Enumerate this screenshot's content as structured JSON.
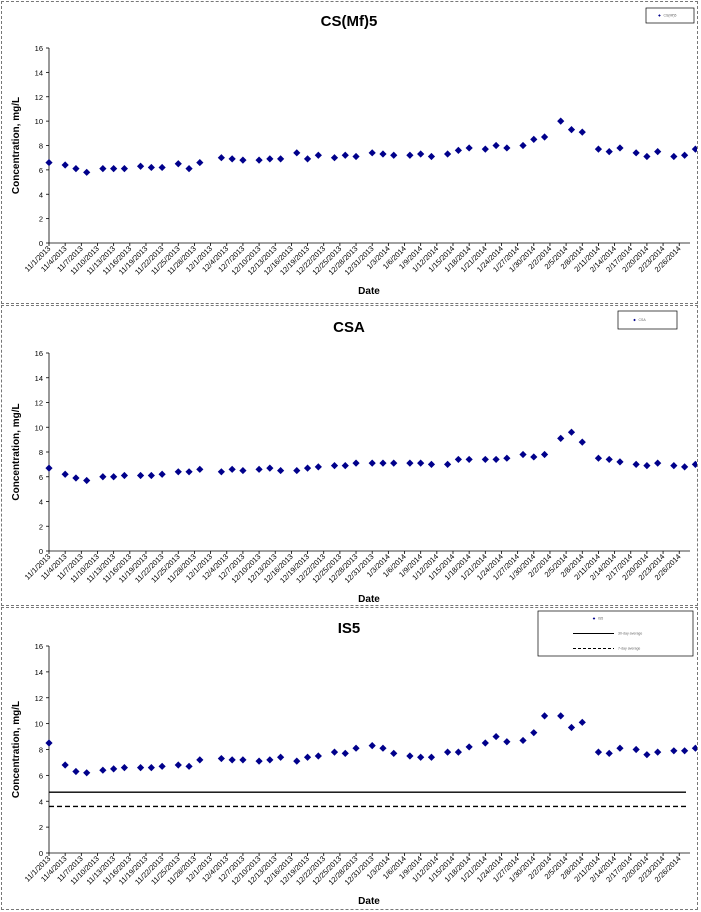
{
  "x_dates": [
    "11/1/2013",
    "11/4/2013",
    "11/7/2013",
    "11/10/2013",
    "11/13/2013",
    "11/16/2013",
    "11/19/2013",
    "11/22/2013",
    "11/25/2013",
    "11/28/2013",
    "12/1/2013",
    "12/4/2013",
    "12/7/2013",
    "12/10/2013",
    "12/13/2013",
    "12/16/2013",
    "12/19/2013",
    "12/22/2013",
    "12/25/2013",
    "12/28/2013",
    "12/31/2013",
    "1/3/2014",
    "1/6/2014",
    "1/9/2014",
    "1/12/2014",
    "1/15/2014",
    "1/18/2014",
    "1/21/2014",
    "1/24/2014",
    "1/27/2014",
    "1/30/2014",
    "2/2/2014",
    "2/5/2014",
    "2/8/2014",
    "2/11/2014",
    "2/14/2014",
    "2/17/2014",
    "2/20/2014",
    "2/23/2014",
    "2/26/2014"
  ],
  "chart_data": [
    {
      "type": "scatter",
      "title": "CS(Mf)5",
      "xlabel": "Date",
      "ylabel": "Concentration, mg/L",
      "ylim": [
        0,
        16
      ],
      "yticks": [
        0,
        2,
        4,
        6,
        8,
        10,
        12,
        14,
        16
      ],
      "x_start": "11/1/2013",
      "x_end": "2/28/2014",
      "tick_labels": [
        "11/1/2013",
        "11/4/2013",
        "11/7/2013",
        "11/10/2013",
        "11/13/2013",
        "11/16/2013",
        "11/19/2013",
        "11/22/2013",
        "11/25/2013",
        "11/28/2013",
        "12/1/2013",
        "12/4/2013",
        "12/7/2013",
        "12/10/2013",
        "12/13/2013",
        "12/16/2013",
        "12/19/2013",
        "12/22/2013",
        "12/25/2013",
        "12/28/2013",
        "12/31/2013",
        "1/3/2014",
        "1/6/2014",
        "1/9/2014",
        "1/12/2014",
        "1/15/2014",
        "1/18/2014",
        "1/21/2014",
        "1/24/2014",
        "1/27/2014",
        "1/30/2014",
        "2/2/2014",
        "2/5/2014",
        "2/8/2014",
        "2/11/2014",
        "2/14/2014",
        "2/17/2014",
        "2/20/2014",
        "2/23/2014",
        "2/26/2014"
      ],
      "legend_position": "top-right",
      "legend": [
        {
          "label": "CS(Mf)5",
          "marker": "diamond"
        }
      ],
      "series": [
        {
          "name": "CS(Mf)5",
          "color": "#00008b",
          "marker": "diamond",
          "x": [
            "11/1/2013",
            "11/4/2013",
            "11/6/2013",
            "11/8/2013",
            "11/11/2013",
            "11/13/2013",
            "11/15/2013",
            "11/18/2013",
            "11/20/2013",
            "11/22/2013",
            "11/25/2013",
            "11/27/2013",
            "11/29/2013",
            "12/3/2013",
            "12/5/2013",
            "12/7/2013",
            "12/10/2013",
            "12/12/2013",
            "12/14/2013",
            "12/17/2013",
            "12/19/2013",
            "12/21/2013",
            "12/24/2013",
            "12/26/2013",
            "12/28/2013",
            "12/31/2013",
            "1/2/2014",
            "1/4/2014",
            "1/7/2014",
            "1/9/2014",
            "1/11/2014",
            "1/14/2014",
            "1/16/2014",
            "1/18/2014",
            "1/21/2014",
            "1/23/2014",
            "1/25/2014",
            "1/28/2014",
            "1/30/2014",
            "2/1/2014",
            "2/4/2014",
            "2/6/2014",
            "2/8/2014",
            "2/11/2014",
            "2/13/2014",
            "2/15/2014",
            "2/18/2014",
            "2/20/2014",
            "2/22/2014",
            "2/25/2014",
            "2/27/2014",
            "3/1/2014"
          ],
          "y": [
            6.6,
            6.4,
            6.1,
            5.8,
            6.1,
            6.1,
            6.1,
            6.3,
            6.2,
            6.2,
            6.5,
            6.1,
            6.6,
            7.0,
            6.9,
            6.8,
            6.8,
            6.9,
            6.9,
            7.4,
            6.9,
            7.2,
            7.0,
            7.2,
            7.1,
            7.4,
            7.3,
            7.2,
            7.2,
            7.3,
            7.1,
            7.3,
            7.6,
            7.8,
            7.7,
            8.0,
            7.8,
            8.0,
            8.5,
            8.7,
            10.0,
            9.3,
            9.1,
            7.7,
            7.5,
            7.8,
            7.4,
            7.1,
            7.5,
            7.1,
            7.2,
            7.7
          ]
        }
      ]
    },
    {
      "type": "scatter",
      "title": "CSA",
      "xlabel": "Date",
      "ylabel": "Concentration, mg/L",
      "ylim": [
        0,
        16
      ],
      "yticks": [
        0,
        2,
        4,
        6,
        8,
        10,
        12,
        14,
        16
      ],
      "x_start": "11/1/2013",
      "x_end": "2/28/2014",
      "tick_labels": [
        "11/1/2013",
        "11/4/2013",
        "11/7/2013",
        "11/10/2013",
        "11/13/2013",
        "11/16/2013",
        "11/19/2013",
        "11/22/2013",
        "11/25/2013",
        "11/28/2013",
        "12/1/2013",
        "12/4/2013",
        "12/7/2013",
        "12/10/2013",
        "12/13/2013",
        "12/16/2013",
        "12/19/2013",
        "12/22/2013",
        "12/25/2013",
        "12/28/2013",
        "12/31/2013",
        "1/3/2014",
        "1/6/2014",
        "1/9/2014",
        "1/12/2014",
        "1/15/2014",
        "1/18/2014",
        "1/21/2014",
        "1/24/2014",
        "1/27/2014",
        "1/30/2014",
        "2/2/2014",
        "2/5/2014",
        "2/8/2014",
        "2/11/2014",
        "2/14/2014",
        "2/17/2014",
        "2/20/2014",
        "2/23/2014",
        "2/26/2014"
      ],
      "legend_position": "top-right",
      "legend": [
        {
          "label": "CSA",
          "marker": "diamond"
        }
      ],
      "series": [
        {
          "name": "CSA",
          "color": "#00008b",
          "marker": "diamond",
          "x": [
            "11/1/2013",
            "11/4/2013",
            "11/6/2013",
            "11/8/2013",
            "11/11/2013",
            "11/13/2013",
            "11/15/2013",
            "11/18/2013",
            "11/20/2013",
            "11/22/2013",
            "11/25/2013",
            "11/27/2013",
            "11/29/2013",
            "12/3/2013",
            "12/5/2013",
            "12/7/2013",
            "12/10/2013",
            "12/12/2013",
            "12/14/2013",
            "12/17/2013",
            "12/19/2013",
            "12/21/2013",
            "12/24/2013",
            "12/26/2013",
            "12/28/2013",
            "12/31/2013",
            "1/2/2014",
            "1/4/2014",
            "1/7/2014",
            "1/9/2014",
            "1/11/2014",
            "1/14/2014",
            "1/16/2014",
            "1/18/2014",
            "1/21/2014",
            "1/23/2014",
            "1/25/2014",
            "1/28/2014",
            "1/30/2014",
            "2/1/2014",
            "2/4/2014",
            "2/6/2014",
            "2/8/2014",
            "2/11/2014",
            "2/13/2014",
            "2/15/2014",
            "2/18/2014",
            "2/20/2014",
            "2/22/2014",
            "2/25/2014",
            "2/27/2014",
            "3/1/2014"
          ],
          "y": [
            6.7,
            6.2,
            5.9,
            5.7,
            6.0,
            6.0,
            6.1,
            6.1,
            6.1,
            6.2,
            6.4,
            6.4,
            6.6,
            6.4,
            6.6,
            6.5,
            6.6,
            6.7,
            6.5,
            6.5,
            6.7,
            6.8,
            6.9,
            6.9,
            7.1,
            7.1,
            7.1,
            7.1,
            7.1,
            7.1,
            7.0,
            7.0,
            7.4,
            7.4,
            7.4,
            7.4,
            7.5,
            7.8,
            7.6,
            7.8,
            9.1,
            9.6,
            8.8,
            7.5,
            7.4,
            7.2,
            7.0,
            6.9,
            7.1,
            6.9,
            6.8,
            7.0
          ]
        }
      ]
    },
    {
      "type": "scatter",
      "title": "IS5",
      "xlabel": "Date",
      "ylabel": "Concentration, mg/L",
      "ylim": [
        0,
        16
      ],
      "yticks": [
        0,
        2,
        4,
        6,
        8,
        10,
        12,
        14,
        16
      ],
      "x_start": "11/1/2013",
      "x_end": "2/28/2014",
      "tick_labels": [
        "11/1/2013",
        "11/4/2013",
        "11/7/2013",
        "11/10/2013",
        "11/13/2013",
        "11/16/2013",
        "11/19/2013",
        "11/22/2013",
        "11/25/2013",
        "11/28/2013",
        "12/1/2013",
        "12/4/2013",
        "12/7/2013",
        "12/10/2013",
        "12/13/2013",
        "12/16/2013",
        "12/19/2013",
        "12/22/2013",
        "12/25/2013",
        "12/28/2013",
        "12/31/2013",
        "1/3/2014",
        "1/6/2014",
        "1/9/2014",
        "1/12/2014",
        "1/15/2014",
        "1/18/2014",
        "1/21/2014",
        "1/24/2014",
        "1/27/2014",
        "1/30/2014",
        "2/2/2014",
        "2/5/2014",
        "2/8/2014",
        "2/11/2014",
        "2/14/2014",
        "2/17/2014",
        "2/20/2014",
        "2/23/2014",
        "2/26/2014"
      ],
      "legend_position": "top-right",
      "legend": [
        {
          "label": "IS5",
          "marker": "diamond"
        },
        {
          "label": "30-day average",
          "marker": "solid-line"
        },
        {
          "label": "7-day average",
          "marker": "dashed-line"
        }
      ],
      "series": [
        {
          "name": "IS5",
          "color": "#00008b",
          "marker": "diamond",
          "x": [
            "11/1/2013",
            "11/4/2013",
            "11/6/2013",
            "11/8/2013",
            "11/11/2013",
            "11/13/2013",
            "11/15/2013",
            "11/18/2013",
            "11/20/2013",
            "11/22/2013",
            "11/25/2013",
            "11/27/2013",
            "11/29/2013",
            "12/3/2013",
            "12/5/2013",
            "12/7/2013",
            "12/10/2013",
            "12/12/2013",
            "12/14/2013",
            "12/17/2013",
            "12/19/2013",
            "12/21/2013",
            "12/24/2013",
            "12/26/2013",
            "12/28/2013",
            "12/31/2013",
            "1/2/2014",
            "1/4/2014",
            "1/7/2014",
            "1/9/2014",
            "1/11/2014",
            "1/14/2014",
            "1/16/2014",
            "1/18/2014",
            "1/21/2014",
            "1/23/2014",
            "1/25/2014",
            "1/28/2014",
            "1/30/2014",
            "2/1/2014",
            "2/4/2014",
            "2/6/2014",
            "2/8/2014",
            "2/11/2014",
            "2/13/2014",
            "2/15/2014",
            "2/18/2014",
            "2/20/2014",
            "2/22/2014",
            "2/25/2014",
            "2/27/2014",
            "3/1/2014"
          ],
          "y": [
            8.5,
            6.8,
            6.3,
            6.2,
            6.4,
            6.5,
            6.6,
            6.6,
            6.6,
            6.7,
            6.8,
            6.7,
            7.2,
            7.3,
            7.2,
            7.2,
            7.1,
            7.2,
            7.4,
            7.1,
            7.4,
            7.5,
            7.8,
            7.7,
            8.1,
            8.3,
            8.1,
            7.7,
            7.5,
            7.4,
            7.4,
            7.8,
            7.8,
            8.2,
            8.5,
            9.0,
            8.6,
            8.7,
            9.3,
            10.6,
            10.6,
            9.7,
            10.1,
            7.8,
            7.7,
            8.1,
            8.0,
            7.6,
            7.8,
            7.9,
            7.9,
            8.1
          ]
        },
        {
          "name": "30-day average",
          "type": "hline",
          "y": 4.7,
          "color": "#000000",
          "style": "solid"
        },
        {
          "name": "7-day average",
          "type": "hline",
          "y": 3.6,
          "color": "#000000",
          "style": "dashed"
        }
      ]
    }
  ]
}
